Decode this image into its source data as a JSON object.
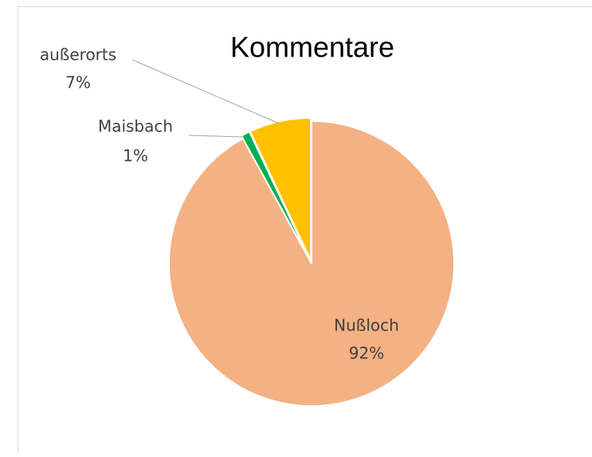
{
  "chart_data": {
    "type": "pie",
    "title": "Kommentare",
    "categories": [
      "Nußloch",
      "Maisbach",
      "außerorts"
    ],
    "values": [
      92,
      1,
      7
    ],
    "value_labels": [
      "92%",
      "1%",
      "7%"
    ],
    "colors": [
      "#f4b183",
      "#00b050",
      "#ffc000"
    ]
  }
}
